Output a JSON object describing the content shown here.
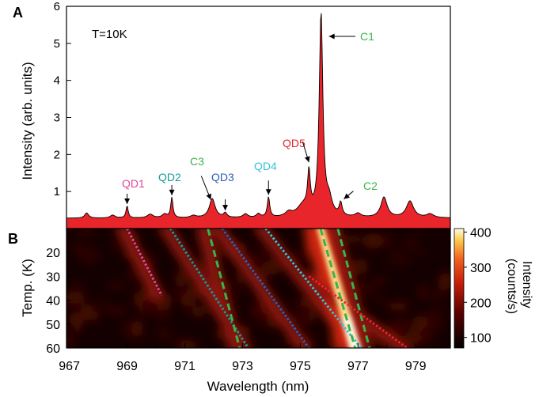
{
  "chart_data": [
    {
      "panel": "A",
      "type": "area",
      "annotation_text": "T=10K",
      "ylabel": "Intensity (arb. units)",
      "xlabel": "",
      "xlim": [
        966.9,
        980.2
      ],
      "ylim": [
        0,
        6
      ],
      "yticks": [
        1,
        2,
        3,
        4,
        5,
        6
      ],
      "fill_color": "#e8252b",
      "baseline": 0.28,
      "peaks": [
        {
          "x": 967.6,
          "height": 0.14,
          "width": 0.08
        },
        {
          "x": 968.5,
          "height": 0.08,
          "width": 0.1
        },
        {
          "x": 969.0,
          "height": 0.33,
          "width": 0.045
        },
        {
          "x": 969.8,
          "height": 0.1,
          "width": 0.12
        },
        {
          "x": 970.3,
          "height": 0.1,
          "width": 0.1
        },
        {
          "x": 970.55,
          "height": 0.55,
          "width": 0.045
        },
        {
          "x": 971.3,
          "height": 0.06,
          "width": 0.12
        },
        {
          "x": 971.95,
          "height": 0.52,
          "width": 0.12
        },
        {
          "x": 972.4,
          "height": 0.12,
          "width": 0.07
        },
        {
          "x": 973.1,
          "height": 0.1,
          "width": 0.1
        },
        {
          "x": 973.55,
          "height": 0.1,
          "width": 0.08
        },
        {
          "x": 973.9,
          "height": 0.55,
          "width": 0.05
        },
        {
          "x": 974.6,
          "height": 0.12,
          "width": 0.14
        },
        {
          "x": 975.1,
          "height": 0.3,
          "width": 0.25
        },
        {
          "x": 975.3,
          "height": 1.05,
          "width": 0.055
        },
        {
          "x": 975.72,
          "height": 5.5,
          "width": 0.075
        },
        {
          "x": 976.0,
          "height": 0.4,
          "width": 0.12
        },
        {
          "x": 976.4,
          "height": 0.35,
          "width": 0.06
        },
        {
          "x": 977.0,
          "height": 0.1,
          "width": 0.12
        },
        {
          "x": 977.9,
          "height": 0.55,
          "width": 0.13
        },
        {
          "x": 978.8,
          "height": 0.45,
          "width": 0.15
        },
        {
          "x": 979.5,
          "height": 0.1,
          "width": 0.15
        }
      ],
      "annotations": [
        {
          "text": "QD1",
          "color": "#e0489a",
          "peak_x": 969.0
        },
        {
          "text": "QD2",
          "color": "#17989c",
          "peak_x": 970.55
        },
        {
          "text": "C3",
          "color": "#3bb34a",
          "peak_x": 971.9
        },
        {
          "text": "QD3",
          "color": "#2b5fb4",
          "peak_x": 972.4
        },
        {
          "text": "QD4",
          "color": "#37c1d9",
          "peak_x": 973.9
        },
        {
          "text": "QD5",
          "color": "#e8252b",
          "peak_x": 975.3
        },
        {
          "text": "C1",
          "color": "#3bb34a",
          "peak_x": 975.72
        },
        {
          "text": "C2",
          "color": "#3bb34a",
          "peak_x": 976.4
        }
      ]
    },
    {
      "panel": "B",
      "type": "heatmap",
      "xlabel": "Wavelength (nm)",
      "ylabel": "Temp. (K)",
      "xlim": [
        966.9,
        980.2
      ],
      "ylim": [
        10,
        60
      ],
      "xticks": [
        967,
        969,
        971,
        973,
        975,
        977,
        979
      ],
      "yticks": [
        20,
        30,
        40,
        50,
        60
      ],
      "colorbar": {
        "label": "Intensity (counts/s)",
        "ticks": [
          100,
          200,
          300,
          400
        ],
        "range": [
          70,
          410
        ]
      },
      "lines": [
        {
          "name": "QD1",
          "color": "#e0489a",
          "style": "dotted",
          "points": [
            [
              969.0,
              10
            ],
            [
              970.2,
              38
            ]
          ]
        },
        {
          "name": "QD2",
          "color": "#17989c",
          "style": "dotted",
          "points": [
            [
              970.5,
              10
            ],
            [
              973.2,
              60
            ]
          ]
        },
        {
          "name": "C3",
          "color": "#3bb34a",
          "style": "dashed",
          "points": [
            [
              971.8,
              10
            ],
            [
              972.9,
              60
            ]
          ]
        },
        {
          "name": "QD3",
          "color": "#2b5fb4",
          "style": "dotted",
          "points": [
            [
              972.3,
              10
            ],
            [
              975.3,
              60
            ]
          ]
        },
        {
          "name": "QD4",
          "color": "#37c1d9",
          "style": "dotted",
          "points": [
            [
              973.8,
              10
            ],
            [
              977.1,
              60
            ]
          ]
        },
        {
          "name": "C1",
          "color": "#3bb34a",
          "style": "dashed",
          "points": [
            [
              975.7,
              10
            ],
            [
              976.9,
              60
            ]
          ]
        },
        {
          "name": "C2",
          "color": "#3bb34a",
          "style": "dashed",
          "points": [
            [
              976.3,
              10
            ],
            [
              977.4,
              60
            ]
          ]
        },
        {
          "name": "QD5",
          "color": "#e8252b",
          "style": "dotted",
          "points": [
            [
              975.3,
              30
            ],
            [
              978.7,
              60
            ]
          ]
        }
      ]
    }
  ],
  "panel_labels": {
    "a": "A",
    "b": "B"
  }
}
